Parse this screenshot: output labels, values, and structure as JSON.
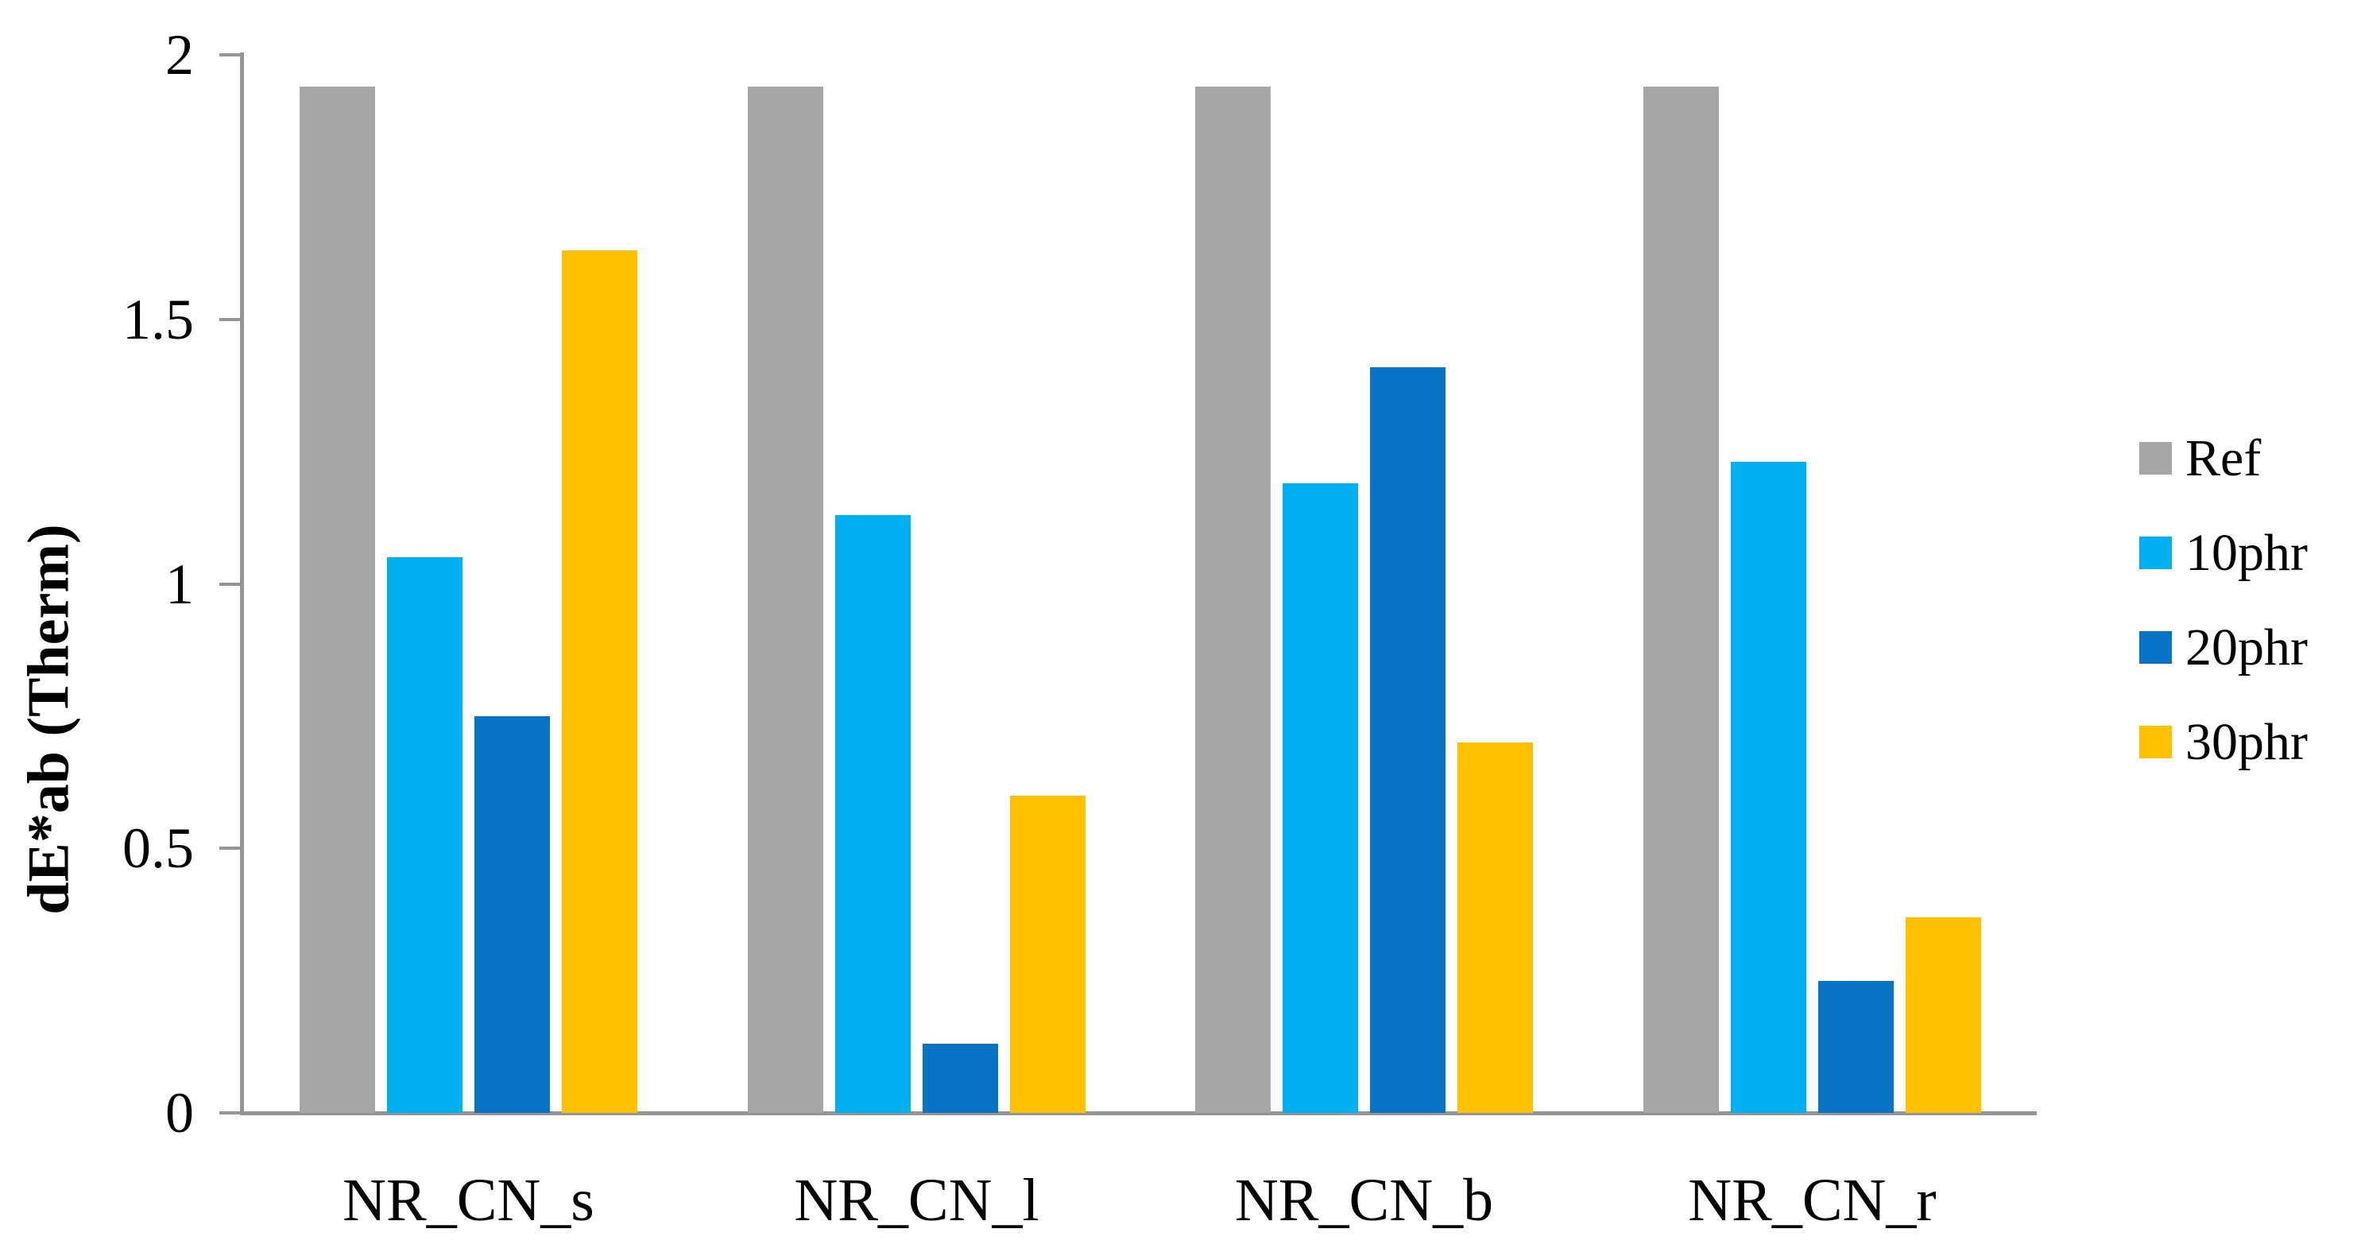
{
  "chart_data": {
    "type": "bar",
    "title": "",
    "xlabel": "",
    "ylabel": "dE*ab (Therm)",
    "categories": [
      "NR_CN_s",
      "NR_CN_l",
      "NR_CN_b",
      "NR_CN_r"
    ],
    "series": [
      {
        "name": "Ref",
        "color": "#A6A6A6",
        "values": [
          1.94,
          1.94,
          1.94,
          1.94
        ]
      },
      {
        "name": "10phr",
        "color": "#00B0F0",
        "values": [
          1.05,
          1.13,
          1.19,
          1.23
        ]
      },
      {
        "name": "20phr",
        "color": "#0873C5",
        "values": [
          0.75,
          0.13,
          1.41,
          0.25
        ]
      },
      {
        "name": "30phr",
        "color": "#FFC000",
        "values": [
          1.63,
          0.6,
          0.7,
          0.37
        ]
      }
    ],
    "ylim": [
      0,
      2
    ],
    "ytick_labels": [
      "0",
      "0.5",
      "1",
      "1.5",
      "2"
    ],
    "grid": false,
    "legend_position": "right",
    "axis_color": "#959595",
    "text_color": "#000000",
    "background": "#FFFFFF"
  }
}
